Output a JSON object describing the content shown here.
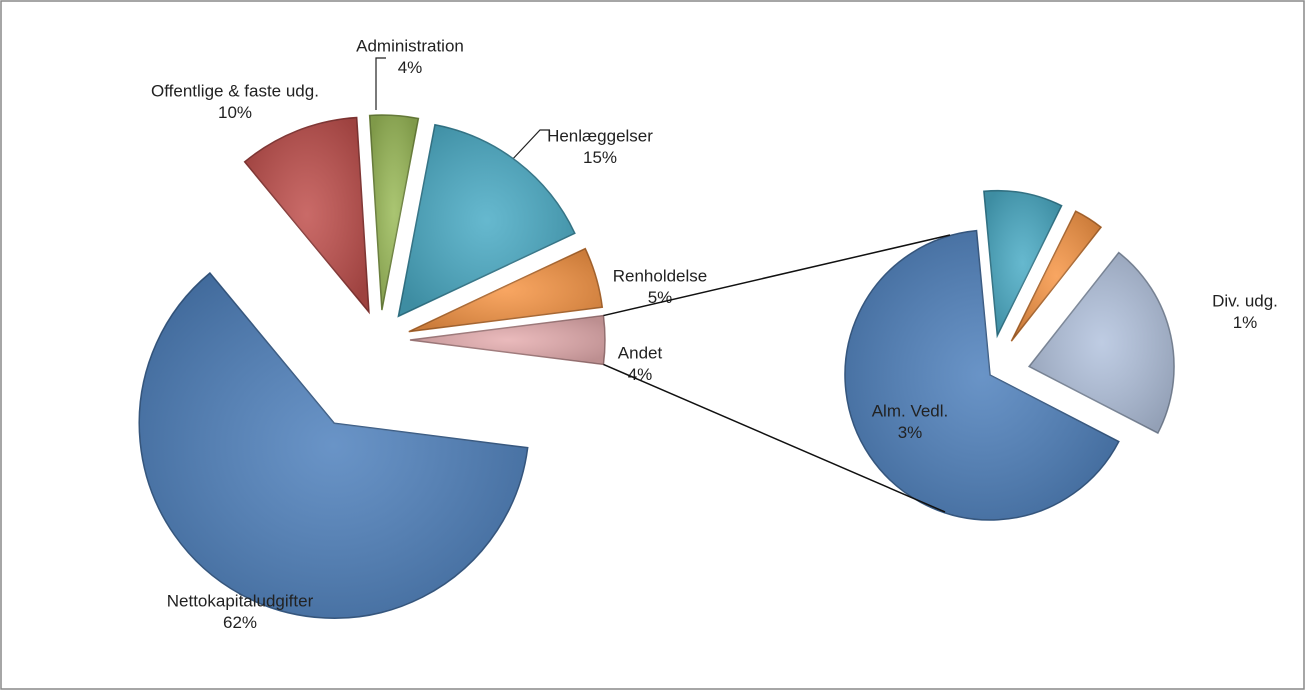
{
  "chart_data": [
    {
      "type": "pie",
      "categories": [
        "Nettokapitaludgifter",
        "Offentlige & faste udg.",
        "Administration",
        "Henlæggelser",
        "Renholdelse",
        "Andet"
      ],
      "values": [
        62,
        10,
        4,
        15,
        5,
        4
      ],
      "value_labels": [
        "62%",
        "10%",
        "4%",
        "15%",
        "5%",
        "4%"
      ],
      "colors": [
        "#4f81bd",
        "#c0504d",
        "#9bbb59",
        "#4bacc6",
        "#f79646",
        "#e6aeb0"
      ]
    },
    {
      "type": "pie",
      "categories": [
        "Alm. Vedl.",
        null,
        null,
        "Div. udg."
      ],
      "values": [
        3,
        0.4,
        0.15,
        1
      ],
      "value_labels": [
        "3%",
        null,
        null,
        "1%"
      ],
      "colors": [
        "#4f81bd",
        "#4bacc6",
        "#f79646",
        "#b3c3de"
      ]
    }
  ]
}
